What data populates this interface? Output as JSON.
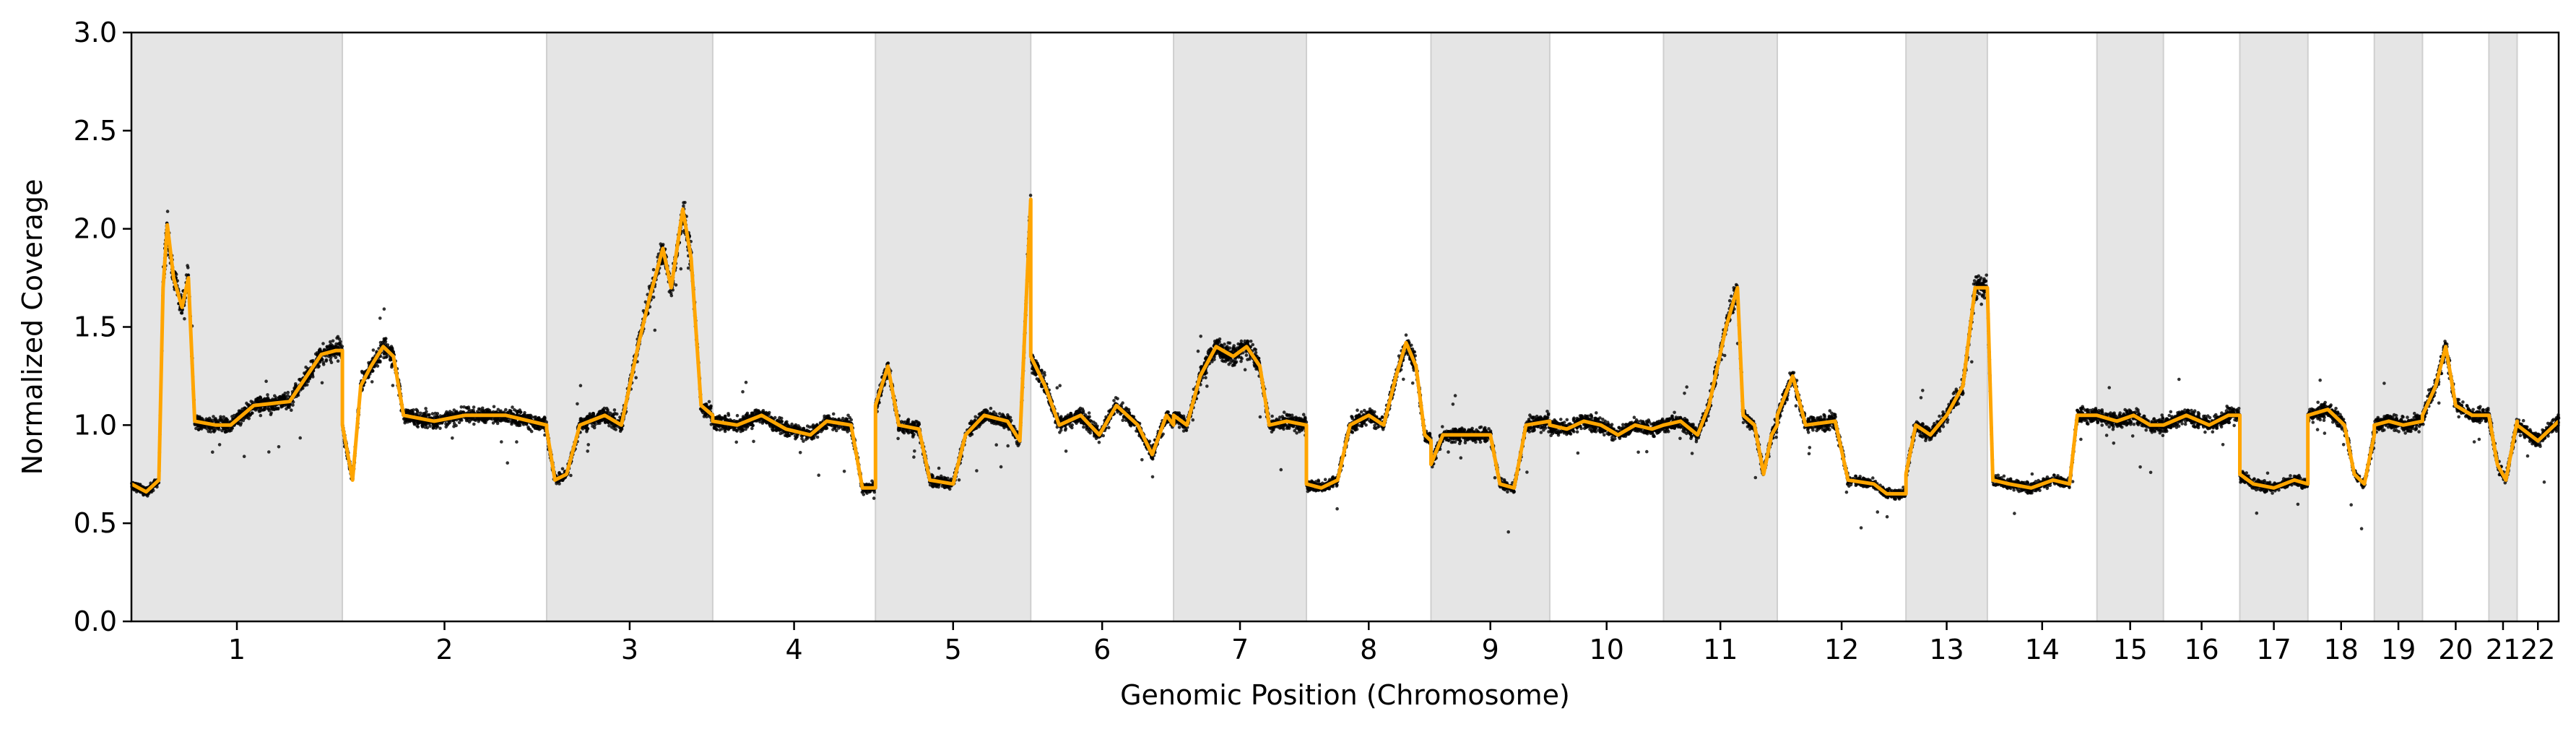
{
  "chart_data": {
    "type": "scatter",
    "title": "",
    "xlabel": "Genomic Position (Chromosome)",
    "ylabel": "Normalized Coverage",
    "ylim": [
      0.0,
      3.0
    ],
    "yticks": [
      "0.0",
      "0.5",
      "1.0",
      "1.5",
      "2.0",
      "2.5",
      "3.0"
    ],
    "grid": false,
    "point_color": "#000000",
    "line_color": "#FFA500",
    "band_color": "#E5E5E5",
    "chromosomes": [
      {
        "label": "1",
        "start": 0,
        "end": 0.2
      },
      {
        "label": "2",
        "start": 0,
        "end": 0
      }
    ],
    "chromosome_axis": [
      {
        "label": "1",
        "size": 254,
        "shaded": true
      },
      {
        "label": "2",
        "size": 246,
        "shaded": false
      },
      {
        "label": "3",
        "size": 200,
        "shaded": true
      },
      {
        "label": "4",
        "size": 196,
        "shaded": false
      },
      {
        "label": "5",
        "size": 187,
        "shaded": true
      },
      {
        "label": "6",
        "size": 172,
        "shaded": false
      },
      {
        "label": "7",
        "size": 160,
        "shaded": true
      },
      {
        "label": "8",
        "size": 150,
        "shaded": false
      },
      {
        "label": "9",
        "size": 143,
        "shaded": true
      },
      {
        "label": "10",
        "size": 137,
        "shaded": false
      },
      {
        "label": "11",
        "size": 137,
        "shaded": true
      },
      {
        "label": "12",
        "size": 155,
        "shaded": false
      },
      {
        "label": "13",
        "size": 98,
        "shaded": true
      },
      {
        "label": "14",
        "size": 132,
        "shaded": false
      },
      {
        "label": "15",
        "size": 80,
        "shaded": true
      },
      {
        "label": "16",
        "size": 92,
        "shaded": false
      },
      {
        "label": "17",
        "size": 82,
        "shaded": true
      },
      {
        "label": "18",
        "size": 80,
        "shaded": false
      },
      {
        "label": "19",
        "size": 58,
        "shaded": true
      },
      {
        "label": "20",
        "size": 80,
        "shaded": false
      },
      {
        "label": "21",
        "size": 34,
        "shaded": true
      },
      {
        "label": "22",
        "size": 50,
        "shaded": false
      }
    ],
    "segments": [
      {
        "chr": "1",
        "points": [
          [
            0.0,
            0.7
          ],
          [
            0.07,
            0.66
          ],
          [
            0.13,
            0.72
          ],
          [
            0.15,
            1.7
          ],
          [
            0.17,
            2.02
          ],
          [
            0.2,
            1.75
          ],
          [
            0.24,
            1.6
          ],
          [
            0.27,
            1.75
          ],
          [
            0.3,
            1.02
          ],
          [
            0.4,
            1.0
          ],
          [
            0.47,
            1.0
          ],
          [
            0.58,
            1.1
          ],
          [
            0.75,
            1.12
          ],
          [
            0.9,
            1.36
          ],
          [
            0.97,
            1.38
          ],
          [
            1.0,
            1.38
          ]
        ]
      },
      {
        "chr": "2",
        "points": [
          [
            0.0,
            1.0
          ],
          [
            0.05,
            0.72
          ],
          [
            0.09,
            1.2
          ],
          [
            0.14,
            1.3
          ],
          [
            0.2,
            1.4
          ],
          [
            0.25,
            1.35
          ],
          [
            0.3,
            1.05
          ],
          [
            0.45,
            1.02
          ],
          [
            0.6,
            1.05
          ],
          [
            0.8,
            1.05
          ],
          [
            1.0,
            1.0
          ]
        ]
      },
      {
        "chr": "3",
        "points": [
          [
            0.0,
            0.98
          ],
          [
            0.05,
            0.72
          ],
          [
            0.12,
            0.75
          ],
          [
            0.2,
            1.0
          ],
          [
            0.35,
            1.05
          ],
          [
            0.45,
            1.0
          ],
          [
            0.55,
            1.4
          ],
          [
            0.62,
            1.65
          ],
          [
            0.7,
            1.9
          ],
          [
            0.75,
            1.7
          ],
          [
            0.82,
            2.1
          ],
          [
            0.87,
            1.85
          ],
          [
            0.93,
            1.1
          ],
          [
            1.0,
            1.05
          ]
        ]
      },
      {
        "chr": "4",
        "points": [
          [
            0.0,
            1.02
          ],
          [
            0.15,
            1.0
          ],
          [
            0.3,
            1.05
          ],
          [
            0.45,
            0.98
          ],
          [
            0.6,
            0.95
          ],
          [
            0.7,
            1.02
          ],
          [
            0.85,
            1.0
          ],
          [
            0.92,
            0.68
          ],
          [
            1.0,
            0.68
          ]
        ]
      },
      {
        "chr": "5",
        "points": [
          [
            0.0,
            1.1
          ],
          [
            0.08,
            1.3
          ],
          [
            0.15,
            1.0
          ],
          [
            0.28,
            0.98
          ],
          [
            0.35,
            0.72
          ],
          [
            0.5,
            0.7
          ],
          [
            0.58,
            0.95
          ],
          [
            0.7,
            1.05
          ],
          [
            0.85,
            1.02
          ],
          [
            0.93,
            0.92
          ],
          [
            1.0,
            2.15
          ]
        ]
      },
      {
        "chr": "6",
        "points": [
          [
            0.0,
            1.35
          ],
          [
            0.1,
            1.2
          ],
          [
            0.2,
            1.0
          ],
          [
            0.35,
            1.05
          ],
          [
            0.48,
            0.95
          ],
          [
            0.6,
            1.1
          ],
          [
            0.75,
            1.0
          ],
          [
            0.85,
            0.85
          ],
          [
            0.95,
            1.05
          ],
          [
            1.0,
            1.0
          ]
        ]
      },
      {
        "chr": "7",
        "points": [
          [
            0.0,
            1.05
          ],
          [
            0.1,
            1.0
          ],
          [
            0.2,
            1.25
          ],
          [
            0.32,
            1.4
          ],
          [
            0.45,
            1.35
          ],
          [
            0.55,
            1.4
          ],
          [
            0.65,
            1.3
          ],
          [
            0.72,
            1.0
          ],
          [
            0.85,
            1.02
          ],
          [
            1.0,
            1.0
          ]
        ]
      },
      {
        "chr": "8",
        "points": [
          [
            0.0,
            0.7
          ],
          [
            0.12,
            0.68
          ],
          [
            0.25,
            0.72
          ],
          [
            0.35,
            1.0
          ],
          [
            0.5,
            1.05
          ],
          [
            0.62,
            1.0
          ],
          [
            0.72,
            1.25
          ],
          [
            0.8,
            1.42
          ],
          [
            0.88,
            1.3
          ],
          [
            0.95,
            0.95
          ],
          [
            1.0,
            0.92
          ]
        ]
      },
      {
        "chr": "9",
        "points": [
          [
            0.0,
            0.8
          ],
          [
            0.1,
            0.95
          ],
          [
            0.5,
            0.95
          ],
          [
            0.58,
            0.7
          ],
          [
            0.7,
            0.68
          ],
          [
            0.8,
            1.0
          ],
          [
            1.0,
            1.02
          ]
        ]
      },
      {
        "chr": "10",
        "points": [
          [
            0.0,
            1.0
          ],
          [
            0.15,
            0.98
          ],
          [
            0.3,
            1.02
          ],
          [
            0.45,
            1.0
          ],
          [
            0.6,
            0.95
          ],
          [
            0.75,
            1.0
          ],
          [
            0.9,
            0.98
          ],
          [
            1.0,
            1.0
          ]
        ]
      },
      {
        "chr": "11",
        "points": [
          [
            0.0,
            1.0
          ],
          [
            0.15,
            1.02
          ],
          [
            0.3,
            0.95
          ],
          [
            0.4,
            1.1
          ],
          [
            0.55,
            1.5
          ],
          [
            0.65,
            1.7
          ],
          [
            0.7,
            1.05
          ],
          [
            0.8,
            1.0
          ],
          [
            0.88,
            0.75
          ],
          [
            0.95,
            0.95
          ],
          [
            1.0,
            1.0
          ]
        ]
      },
      {
        "chr": "12",
        "points": [
          [
            0.0,
            1.05
          ],
          [
            0.12,
            1.25
          ],
          [
            0.22,
            1.0
          ],
          [
            0.45,
            1.02
          ],
          [
            0.55,
            0.72
          ],
          [
            0.75,
            0.7
          ],
          [
            0.85,
            0.65
          ],
          [
            1.0,
            0.65
          ]
        ]
      },
      {
        "chr": "13",
        "points": [
          [
            0.0,
            0.75
          ],
          [
            0.12,
            1.0
          ],
          [
            0.3,
            0.95
          ],
          [
            0.5,
            1.05
          ],
          [
            0.7,
            1.2
          ],
          [
            0.85,
            1.7
          ],
          [
            1.0,
            1.7
          ]
        ]
      },
      {
        "chr": "14",
        "points": [
          [
            0.0,
            1.7
          ],
          [
            0.05,
            0.72
          ],
          [
            0.2,
            0.7
          ],
          [
            0.4,
            0.68
          ],
          [
            0.6,
            0.72
          ],
          [
            0.75,
            0.7
          ],
          [
            0.82,
            1.05
          ],
          [
            1.0,
            1.05
          ]
        ]
      },
      {
        "chr": "15",
        "points": [
          [
            0.0,
            1.05
          ],
          [
            0.3,
            1.02
          ],
          [
            0.55,
            1.05
          ],
          [
            0.8,
            1.0
          ],
          [
            1.0,
            1.0
          ]
        ]
      },
      {
        "chr": "16",
        "points": [
          [
            0.0,
            1.0
          ],
          [
            0.3,
            1.05
          ],
          [
            0.6,
            1.0
          ],
          [
            0.85,
            1.05
          ],
          [
            1.0,
            1.05
          ]
        ]
      },
      {
        "chr": "17",
        "points": [
          [
            0.0,
            0.75
          ],
          [
            0.2,
            0.7
          ],
          [
            0.5,
            0.68
          ],
          [
            0.8,
            0.72
          ],
          [
            1.0,
            0.7
          ]
        ]
      },
      {
        "chr": "18",
        "points": [
          [
            0.0,
            1.05
          ],
          [
            0.3,
            1.08
          ],
          [
            0.55,
            1.0
          ],
          [
            0.7,
            0.75
          ],
          [
            0.85,
            0.7
          ],
          [
            1.0,
            0.95
          ]
        ]
      },
      {
        "chr": "19",
        "points": [
          [
            0.0,
            1.0
          ],
          [
            0.3,
            1.02
          ],
          [
            0.6,
            1.0
          ],
          [
            1.0,
            1.02
          ]
        ]
      },
      {
        "chr": "20",
        "points": [
          [
            0.0,
            1.05
          ],
          [
            0.2,
            1.2
          ],
          [
            0.35,
            1.4
          ],
          [
            0.5,
            1.1
          ],
          [
            0.75,
            1.05
          ],
          [
            1.0,
            1.05
          ]
        ]
      },
      {
        "chr": "21",
        "points": [
          [
            0.0,
            1.05
          ],
          [
            0.3,
            0.8
          ],
          [
            0.6,
            0.72
          ],
          [
            1.0,
            1.02
          ]
        ]
      },
      {
        "chr": "22",
        "points": [
          [
            0.0,
            1.0
          ],
          [
            0.5,
            0.92
          ],
          [
            1.0,
            1.02
          ]
        ]
      }
    ]
  }
}
